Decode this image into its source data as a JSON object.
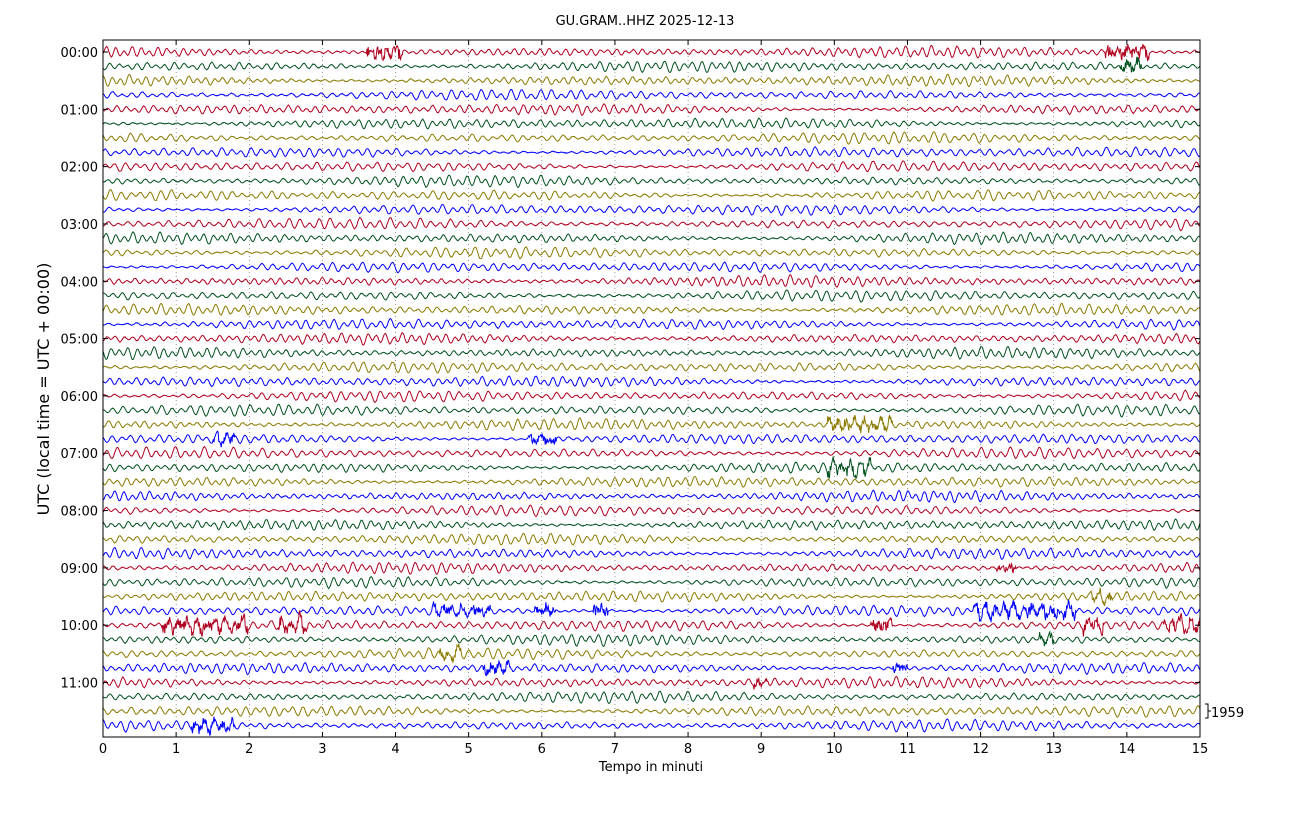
{
  "chart_data": {
    "type": "line",
    "title": "GU.GRAM..HHZ 2025-12-13",
    "xlabel": "Tempo in minuti",
    "ylabel": "UTC (local time = UTC + 00:00)",
    "xlim": [
      0,
      15
    ],
    "x_ticks": [
      "0",
      "1",
      "2",
      "3",
      "4",
      "5",
      "6",
      "7",
      "8",
      "9",
      "10",
      "11",
      "12",
      "13",
      "14",
      "15"
    ],
    "y_tick_labels": [
      "00:00",
      "01:00",
      "02:00",
      "03:00",
      "04:00",
      "05:00",
      "06:00",
      "07:00",
      "08:00",
      "09:00",
      "10:00",
      "11:00"
    ],
    "trace_count": 48,
    "trace_interval_minutes": 15,
    "trace_colors": [
      "#b00020",
      "#00501e",
      "#8b7a00",
      "#0000ff"
    ],
    "scale_label": "1959",
    "grid": "vertical dotted at each minute"
  }
}
